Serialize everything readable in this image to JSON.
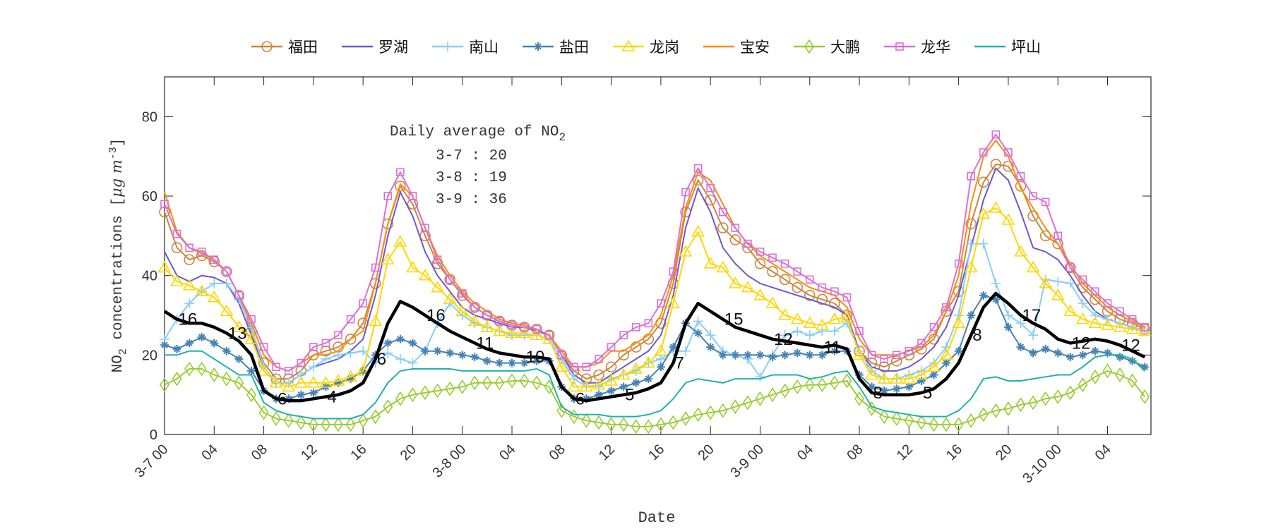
{
  "chart_data": {
    "type": "line",
    "xlabel": "Date",
    "ylabel": {
      "main": "NO",
      "sub": "2",
      "rest": " concentrations [",
      "unit": "μg m",
      "sup": "-3",
      "end": "]"
    },
    "ylim": [
      0,
      90
    ],
    "xlim_hours": [
      0,
      79.5
    ],
    "yticks": [
      "0",
      "20",
      "40",
      "60",
      "80"
    ],
    "xticks": [
      "3-7 00",
      "04",
      "08",
      "12",
      "16",
      "20",
      "3-8 00",
      "04",
      "08",
      "12",
      "16",
      "20",
      "3-9 00",
      "04",
      "08",
      "12",
      "16",
      "20",
      "3-10 00",
      "04"
    ],
    "legend_position": "top",
    "grid": false,
    "annotation": {
      "title": "Daily average of NO",
      "title_sub": "2",
      "lines": [
        "3-7 : 20",
        "3-8 : 19",
        "3-9 : 36"
      ]
    },
    "series": [
      {
        "name": "福田",
        "color": "#CD853F",
        "marker": "circle",
        "values": [
          56,
          47,
          44,
          45,
          43.5,
          41,
          35,
          26,
          18,
          14,
          14,
          16,
          20,
          21,
          22,
          24,
          28,
          38,
          53,
          62.5,
          58,
          50,
          43,
          39,
          35,
          32,
          30,
          28.5,
          27.5,
          27,
          26.5,
          25,
          20,
          16,
          14,
          15,
          17,
          20,
          22,
          24,
          28,
          38,
          56,
          64,
          59,
          52,
          49,
          47,
          43,
          41,
          39,
          37,
          35,
          34,
          33,
          30,
          21,
          18,
          17,
          18.5,
          20,
          21.5,
          24,
          31,
          36,
          53,
          63.5,
          68,
          67.5,
          62.5,
          55,
          50,
          48,
          42,
          37,
          34,
          31,
          29,
          28,
          26.5
        ]
      },
      {
        "name": "罗湖",
        "color": "#6A5ACD",
        "marker": "none",
        "values": [
          46,
          40,
          38.5,
          40,
          39.5,
          38,
          33,
          25,
          17,
          13,
          13,
          15,
          17,
          18,
          19,
          21,
          24,
          35,
          50,
          61,
          55,
          46,
          40,
          36,
          32,
          30,
          29,
          28,
          27,
          27,
          26,
          25,
          20,
          15,
          13,
          13,
          15,
          17,
          19,
          21,
          25,
          35,
          52,
          62,
          56,
          47,
          43,
          40,
          38,
          37,
          36,
          35,
          34,
          33,
          32,
          30,
          21,
          17,
          16,
          16,
          17,
          19,
          22,
          27,
          35,
          47,
          59,
          67,
          64,
          56,
          47,
          46,
          44,
          40,
          35,
          31,
          29,
          28,
          27,
          26
        ]
      },
      {
        "name": "南山",
        "color": "#87CEFA",
        "marker": "plus",
        "values": [
          24,
          29,
          33,
          36,
          38,
          38,
          34,
          27,
          17,
          13,
          13,
          15,
          17,
          19,
          20,
          20.5,
          21,
          18,
          20.5,
          19,
          18,
          21,
          28,
          33,
          30,
          28,
          27,
          26,
          25,
          25,
          25,
          24,
          19,
          14,
          12,
          12,
          14,
          15,
          16,
          18,
          19,
          21,
          21,
          28.5,
          25,
          21,
          20,
          19,
          14.5,
          20,
          25,
          26,
          25,
          26,
          26,
          28,
          21,
          16,
          14,
          14,
          15,
          16,
          18,
          22,
          30,
          48,
          48,
          38,
          30,
          28,
          25,
          39,
          38.5,
          38,
          33,
          30,
          29,
          28,
          27,
          26
        ]
      },
      {
        "name": "盐田",
        "color": "#4682B4",
        "marker": "star",
        "values": [
          22.5,
          21.5,
          23,
          24.5,
          23,
          21,
          19,
          16,
          11,
          9,
          9,
          10,
          10.5,
          12,
          13,
          14,
          16,
          20,
          23,
          24,
          23,
          21,
          21,
          20.5,
          20,
          19.5,
          18.5,
          18,
          18,
          18,
          18.5,
          18.5,
          12,
          9,
          9,
          10,
          11,
          12,
          13,
          14,
          17,
          22,
          28,
          25.5,
          22,
          20,
          20,
          20,
          20,
          19.5,
          20,
          20.5,
          20,
          20,
          21,
          21,
          15,
          12,
          11,
          11.5,
          12,
          13.5,
          15,
          18,
          21,
          30,
          35,
          34,
          27,
          22,
          20.5,
          21.5,
          20.5,
          19.5,
          20,
          21,
          20.5,
          19.5,
          18.5,
          17
        ]
      },
      {
        "name": "龙岗",
        "color": "#FFD700",
        "marker": "triangle",
        "values": [
          42,
          38.5,
          37.5,
          36,
          34.5,
          31,
          27,
          24,
          16,
          13,
          12,
          13,
          13,
          13,
          13.5,
          14.5,
          16,
          28.5,
          44,
          48.5,
          42,
          40,
          37,
          34,
          31,
          28.5,
          27,
          26,
          25.5,
          25.5,
          25,
          24,
          17,
          12,
          12,
          12.5,
          13.5,
          15,
          16.5,
          18,
          21,
          33,
          46,
          51,
          43,
          42,
          38,
          37,
          35,
          33,
          30,
          29,
          28,
          27.5,
          29,
          29.5,
          20,
          15,
          14,
          14,
          14,
          15,
          17,
          20,
          28,
          42,
          55.5,
          57,
          54,
          46,
          42,
          38,
          35,
          31,
          29,
          28,
          27.5,
          27,
          26.5,
          26
        ]
      },
      {
        "name": "宝安",
        "color": "#FF8C00",
        "marker": "none",
        "values": [
          61,
          51,
          47,
          45.5,
          44,
          41,
          35,
          28,
          20,
          17,
          16,
          18,
          20,
          20,
          21,
          24,
          26,
          38,
          53,
          63,
          60,
          52,
          45,
          40,
          36,
          33,
          31,
          29,
          28,
          27.5,
          26.5,
          25,
          21,
          17,
          17,
          18,
          21,
          21,
          23,
          25,
          30,
          40,
          57,
          66,
          64,
          58,
          52,
          48,
          45,
          43,
          41,
          39,
          37,
          36,
          35,
          32,
          24,
          20,
          20,
          20,
          21,
          22,
          25,
          31,
          40,
          58,
          70,
          74,
          70,
          62,
          57,
          52,
          48,
          43,
          38,
          35,
          32,
          30,
          28.5,
          27
        ]
      },
      {
        "name": "大鹏",
        "color": "#9ACD32",
        "marker": "diamond",
        "values": [
          12.5,
          14,
          16.5,
          16.5,
          15,
          14,
          13,
          10,
          5.5,
          4,
          3.5,
          3,
          2.5,
          2.5,
          2.5,
          2.5,
          3.5,
          4.5,
          7,
          9,
          10,
          10.5,
          11,
          11.5,
          12,
          13,
          13,
          13,
          13.5,
          13.5,
          13,
          12,
          6,
          4.5,
          3.5,
          3,
          2.5,
          2.5,
          2,
          2,
          2.5,
          3,
          4,
          5,
          5.5,
          6,
          7,
          8,
          9,
          10,
          11,
          12,
          12.5,
          12.5,
          13,
          13.5,
          9,
          6.5,
          4.5,
          4,
          3.5,
          3,
          2.5,
          2.5,
          2.5,
          3.5,
          5,
          6,
          6.5,
          7.5,
          8,
          9,
          9.5,
          10.5,
          12.5,
          14.5,
          16,
          15,
          13.5,
          9.5
        ]
      },
      {
        "name": "龙华",
        "color": "#DA70D6",
        "marker": "square",
        "values": [
          58,
          50.5,
          47,
          46,
          44,
          41,
          35,
          29,
          22,
          17,
          16,
          18,
          22,
          23,
          25,
          29,
          33,
          42,
          60,
          66,
          60,
          52,
          44,
          39,
          35.5,
          32,
          30,
          28.5,
          27.5,
          27,
          26.5,
          25,
          20,
          17,
          17,
          19,
          22,
          25,
          27,
          28,
          33,
          41,
          61,
          67,
          62,
          56,
          52,
          48,
          46,
          44.5,
          43,
          41,
          39,
          37,
          36,
          34.5,
          26,
          20,
          19,
          20,
          21,
          23,
          27,
          32,
          43,
          65,
          71,
          75.5,
          71,
          65,
          60,
          58.5,
          50,
          42,
          39,
          36,
          33,
          31,
          29,
          27
        ]
      },
      {
        "name": "坪山",
        "color": "#20B2AA",
        "marker": "none",
        "values": [
          20,
          20,
          21,
          21,
          19,
          17,
          15,
          15,
          8,
          6,
          5,
          4.5,
          4,
          4,
          4,
          4,
          5,
          8,
          13,
          16,
          16.5,
          16.5,
          16.5,
          16.5,
          16,
          16,
          16,
          16,
          16,
          16,
          16.5,
          15,
          7,
          5,
          5,
          5,
          4.5,
          4.5,
          4.5,
          5,
          6,
          9,
          13,
          14,
          13.5,
          13,
          14,
          14,
          14,
          15,
          15,
          15,
          14,
          14.5,
          15.5,
          16,
          12,
          7,
          6,
          5.5,
          5,
          4.5,
          4.5,
          4.5,
          6,
          9,
          14,
          14.5,
          13.5,
          13.5,
          14,
          14.5,
          15,
          15,
          17,
          19.5,
          20,
          20,
          19,
          16
        ]
      }
    ],
    "average_line": {
      "color": "#000000",
      "values": [
        31,
        29,
        28,
        28,
        27,
        25.5,
        23.5,
        20,
        11,
        9,
        8.5,
        8.5,
        9,
        9.5,
        10,
        11,
        13,
        19,
        28,
        33.5,
        32,
        30,
        28,
        26,
        24.5,
        23,
        21.5,
        20.5,
        20,
        19.5,
        19.5,
        19,
        12,
        9,
        8.5,
        9,
        9.5,
        10,
        10.5,
        11.5,
        13,
        18,
        28,
        33,
        31,
        29,
        27,
        26,
        25,
        24,
        23.5,
        23,
        22.5,
        22,
        22.5,
        21.5,
        14,
        10.5,
        10,
        10,
        10,
        10.5,
        11.5,
        14,
        18,
        25,
        32,
        35.5,
        33,
        30,
        28,
        26.5,
        24,
        23,
        23.5,
        24,
        23.5,
        22.5,
        21,
        19.5
      ],
      "point_labels": [
        {
          "hour": 1,
          "text": "16"
        },
        {
          "hour": 5,
          "text": "13"
        },
        {
          "hour": 9,
          "text": "6"
        },
        {
          "hour": 13,
          "text": "4"
        },
        {
          "hour": 17,
          "text": "6"
        },
        {
          "hour": 21,
          "text": "16"
        },
        {
          "hour": 25,
          "text": "11"
        },
        {
          "hour": 29,
          "text": "10"
        },
        {
          "hour": 33,
          "text": "6"
        },
        {
          "hour": 37,
          "text": "5"
        },
        {
          "hour": 41,
          "text": "7"
        },
        {
          "hour": 45,
          "text": "15"
        },
        {
          "hour": 49,
          "text": "12"
        },
        {
          "hour": 53,
          "text": "11"
        },
        {
          "hour": 57,
          "text": "8"
        },
        {
          "hour": 61,
          "text": "5"
        },
        {
          "hour": 65,
          "text": "8"
        },
        {
          "hour": 69,
          "text": "17"
        },
        {
          "hour": 73,
          "text": "12"
        },
        {
          "hour": 77,
          "text": "12"
        }
      ]
    }
  }
}
